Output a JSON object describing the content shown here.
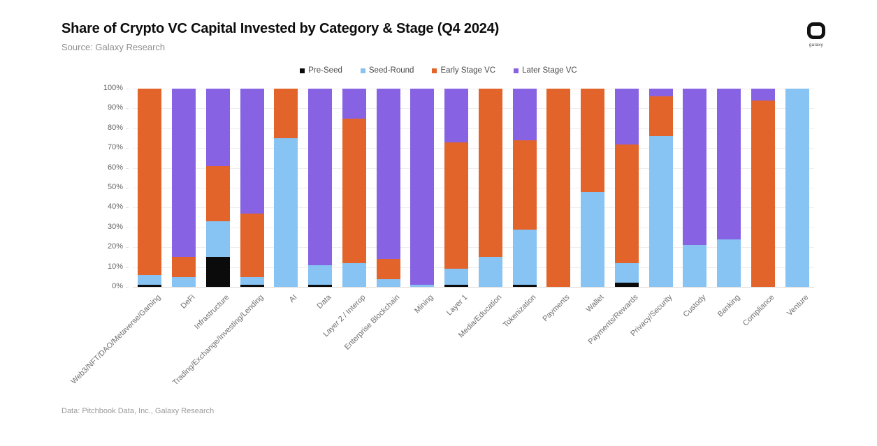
{
  "header": {
    "title": "Share of Crypto VC Capital Invested by Category & Stage (Q4 2024)",
    "source": "Source: Galaxy Research"
  },
  "logo": {
    "name": "galaxy-logo",
    "word": "galaxy"
  },
  "footer": {
    "note": "Data: Pitchbook Data, Inc., Galaxy Research"
  },
  "chart_data": {
    "type": "bar",
    "stacked": true,
    "unit": "percent-share",
    "title": "Share of Crypto VC Capital Invested by Category & Stage (Q4 2024)",
    "xlabel": "",
    "ylabel": "",
    "ylim": [
      0,
      100
    ],
    "ytick_step": 10,
    "ytick_suffix": "%",
    "grid": true,
    "legend_position": "top",
    "categories": [
      "Web3/NFT/DAO/Metaverse/Gaming",
      "DeFi",
      "Infrastructure",
      "Trading/Exchange/Investing/Lending",
      "AI",
      "Data",
      "Layer 2 / Interop",
      "Enterprise Blockchain",
      "Mining",
      "Layer 1",
      "Media/Education",
      "Tokenization",
      "Payments",
      "Wallet",
      "Payments/Rewards",
      "Privacy/Security",
      "Custody",
      "Banking",
      "Compliance",
      "Venture"
    ],
    "series": [
      {
        "name": "Pre-Seed",
        "color": "#0b0b0b",
        "values": [
          1,
          0,
          15,
          1,
          0,
          1,
          0,
          0,
          0,
          1,
          0,
          1,
          0,
          0,
          2,
          0,
          0,
          0,
          0,
          0
        ]
      },
      {
        "name": "Seed-Round",
        "color": "#87C3F3",
        "values": [
          5,
          5,
          18,
          4,
          75,
          10,
          12,
          4,
          1,
          8,
          15,
          28,
          0,
          48,
          10,
          76,
          21,
          24,
          0,
          100
        ]
      },
      {
        "name": "Early Stage VC",
        "color": "#E2642B",
        "values": [
          94,
          10,
          28,
          32,
          25,
          0,
          73,
          10,
          0,
          64,
          85,
          45,
          100,
          52,
          60,
          20,
          0,
          0,
          94,
          0
        ]
      },
      {
        "name": "Later Stage VC",
        "color": "#8763E3",
        "values": [
          0,
          85,
          39,
          63,
          0,
          89,
          15,
          86,
          99,
          27,
          0,
          26,
          0,
          0,
          28,
          4,
          79,
          76,
          6,
          0
        ]
      }
    ]
  }
}
